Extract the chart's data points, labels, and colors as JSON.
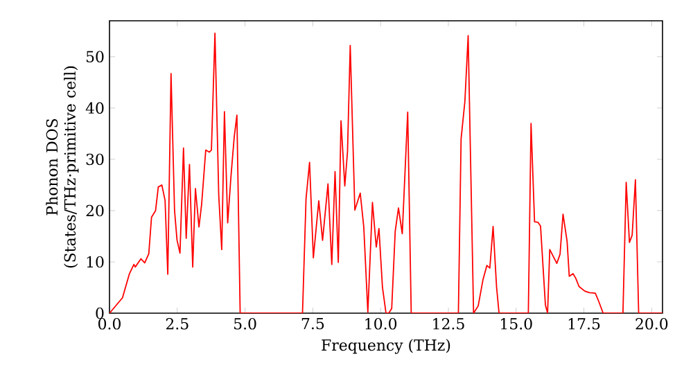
{
  "chart_data": {
    "type": "line",
    "xlabel": "Frequency (THz)",
    "ylabel": "Phonon DOS (States/THz·primitive cell)",
    "xlim": [
      0,
      20.4
    ],
    "ylim": [
      0,
      57
    ],
    "xticks": [
      {
        "value": 0,
        "label": "0.0"
      },
      {
        "value": 2.5,
        "label": "2.5"
      },
      {
        "value": 5,
        "label": "5.0"
      },
      {
        "value": 7.5,
        "label": "7.5"
      },
      {
        "value": 10,
        "label": "10.0"
      },
      {
        "value": 12.5,
        "label": "12.5"
      },
      {
        "value": 15,
        "label": "15.0"
      },
      {
        "value": 17.5,
        "label": "17.5"
      },
      {
        "value": 20,
        "label": "20.0"
      }
    ],
    "yticks": [
      0,
      10,
      20,
      30,
      40,
      50
    ],
    "series": [
      {
        "color": "#ff0000",
        "x": [
          0,
          0.05,
          0.48,
          0.73,
          0.9,
          0.95,
          1.16,
          1.3,
          1.45,
          1.55,
          1.7,
          1.8,
          1.93,
          2.05,
          2.15,
          2.27,
          2.4,
          2.49,
          2.6,
          2.73,
          2.83,
          2.95,
          3.07,
          3.17,
          3.3,
          3.4,
          3.55,
          3.68,
          3.76,
          3.89,
          4.03,
          4.14,
          4.24,
          4.36,
          4.48,
          4.6,
          4.7,
          4.82,
          7.12,
          7.25,
          7.38,
          7.52,
          7.72,
          7.86,
          8.06,
          8.2,
          8.32,
          8.44,
          8.54,
          8.68,
          8.78,
          8.88,
          9.05,
          9.25,
          9.38,
          9.53,
          9.7,
          9.84,
          9.94,
          10.07,
          10.2,
          10.3,
          10.41,
          10.54,
          10.66,
          10.8,
          11.0,
          11.13,
          12.87,
          12.97,
          13.11,
          13.23,
          13.43,
          13.6,
          13.78,
          13.92,
          14.03,
          14.15,
          14.28,
          14.37,
          15.45,
          15.55,
          15.68,
          15.81,
          15.9,
          16.08,
          16.16,
          16.24,
          16.5,
          16.62,
          16.73,
          16.88,
          16.96,
          17.1,
          17.2,
          17.32,
          17.53,
          17.7,
          17.92,
          18.04,
          18.21,
          18.94,
          19.06,
          19.18,
          19.28,
          19.4,
          19.52,
          20.4
        ],
        "values": [
          0,
          0.3,
          3,
          7.6,
          9.5,
          9,
          10.6,
          9.8,
          11.6,
          18.7,
          20,
          24.6,
          25,
          22,
          7.6,
          46.7,
          20,
          14.3,
          11.7,
          32.2,
          14.6,
          29,
          9,
          24.3,
          16.8,
          21.3,
          31.8,
          31.4,
          31.8,
          54.6,
          23,
          12.4,
          39.3,
          17.6,
          26.6,
          34.3,
          38.6,
          0,
          0,
          22.3,
          29.4,
          10.8,
          21.9,
          14.2,
          25.2,
          9.5,
          27.6,
          9.9,
          37.5,
          24.8,
          31.5,
          52.2,
          20.1,
          23.4,
          16.8,
          0.2,
          21.6,
          12.9,
          16.5,
          5,
          0,
          0,
          0.9,
          16,
          20.5,
          15.5,
          39.2,
          0,
          0,
          34,
          41.3,
          54.1,
          0,
          1.4,
          6.6,
          9.3,
          8.8,
          16.9,
          5,
          0,
          0,
          37,
          17.8,
          17.7,
          17,
          1.6,
          0,
          12.4,
          9.7,
          11.5,
          19.3,
          14,
          7.2,
          7.7,
          6.8,
          5.2,
          4.3,
          4,
          3.9,
          2.4,
          0,
          0,
          25.5,
          13.8,
          15.2,
          26,
          0,
          0
        ]
      }
    ]
  }
}
